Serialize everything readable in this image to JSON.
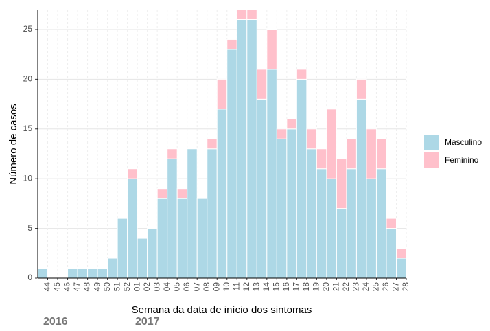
{
  "chart_data": {
    "type": "stacked_bar",
    "xlabel": "Semana da data de início dos sintomas",
    "ylabel": "Número de casos",
    "categories": [
      "44",
      "45",
      "46",
      "47",
      "48",
      "49",
      "50",
      "51",
      "52",
      "01",
      "02",
      "03",
      "04",
      "05",
      "06",
      "07",
      "08",
      "09",
      "10",
      "11",
      "12",
      "13",
      "14",
      "15",
      "16",
      "17",
      "18",
      "19",
      "20",
      "21",
      "22",
      "23",
      "24",
      "25",
      "26",
      "27",
      "28"
    ],
    "series": [
      {
        "name": "Masculino",
        "color": "#add8e6",
        "values": [
          1,
          0,
          0,
          1,
          1,
          1,
          1,
          2,
          6,
          10,
          4,
          5,
          8,
          12,
          8,
          13,
          8,
          13,
          17,
          23,
          26,
          26,
          18,
          21,
          14,
          15,
          20,
          13,
          11,
          10,
          7,
          11,
          18,
          10,
          11,
          5,
          2
        ]
      },
      {
        "name": "Feminino",
        "color": "#ffc0cb",
        "values": [
          0,
          0,
          0,
          0,
          0,
          0,
          0,
          0,
          0,
          1,
          0,
          0,
          1,
          1,
          1,
          0,
          0,
          1,
          3,
          1,
          1,
          1,
          3,
          4,
          1,
          1,
          1,
          2,
          2,
          7,
          5,
          3,
          2,
          5,
          3,
          1,
          1
        ]
      }
    ],
    "ylim": [
      0,
      27
    ],
    "yticks": [
      0,
      5,
      10,
      15,
      20,
      25
    ],
    "grid": true,
    "legend": "right",
    "annotations": [
      "2016",
      "2017"
    ]
  }
}
